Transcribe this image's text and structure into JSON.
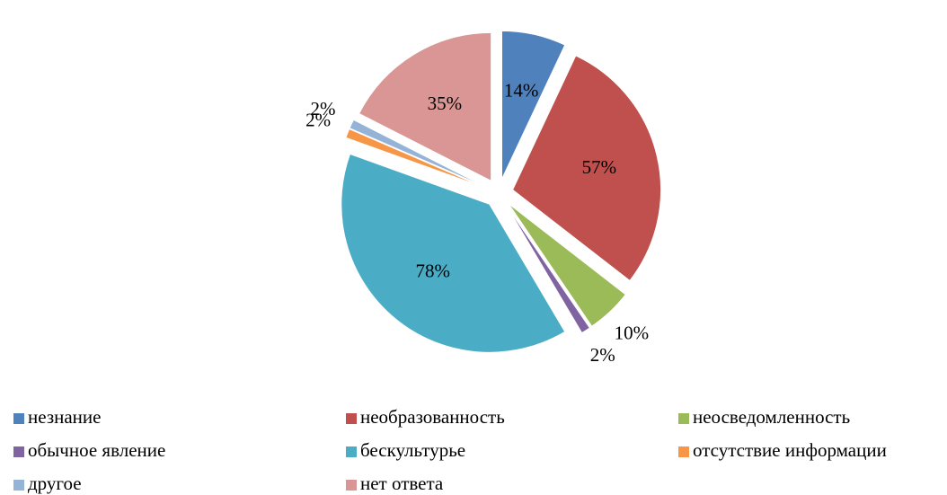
{
  "chart_data": {
    "type": "pie",
    "categories": [
      "незнание",
      "необразованность",
      "неосведомленность",
      "обычное явление",
      "бескультурье",
      "отсутствие информации",
      "другое",
      "нет ответа"
    ],
    "values": [
      14,
      57,
      10,
      2,
      78,
      2,
      2,
      35
    ],
    "value_labels": [
      "14%",
      "57%",
      "10%",
      "2%",
      "78%",
      "2%",
      "2%",
      "35%"
    ],
    "colors": [
      "#4f81bd",
      "#c0504d",
      "#9bbb59",
      "#8064a2",
      "#4bacc6",
      "#f79646",
      "#95b3d7",
      "#d99694"
    ],
    "legend": "bottom"
  }
}
